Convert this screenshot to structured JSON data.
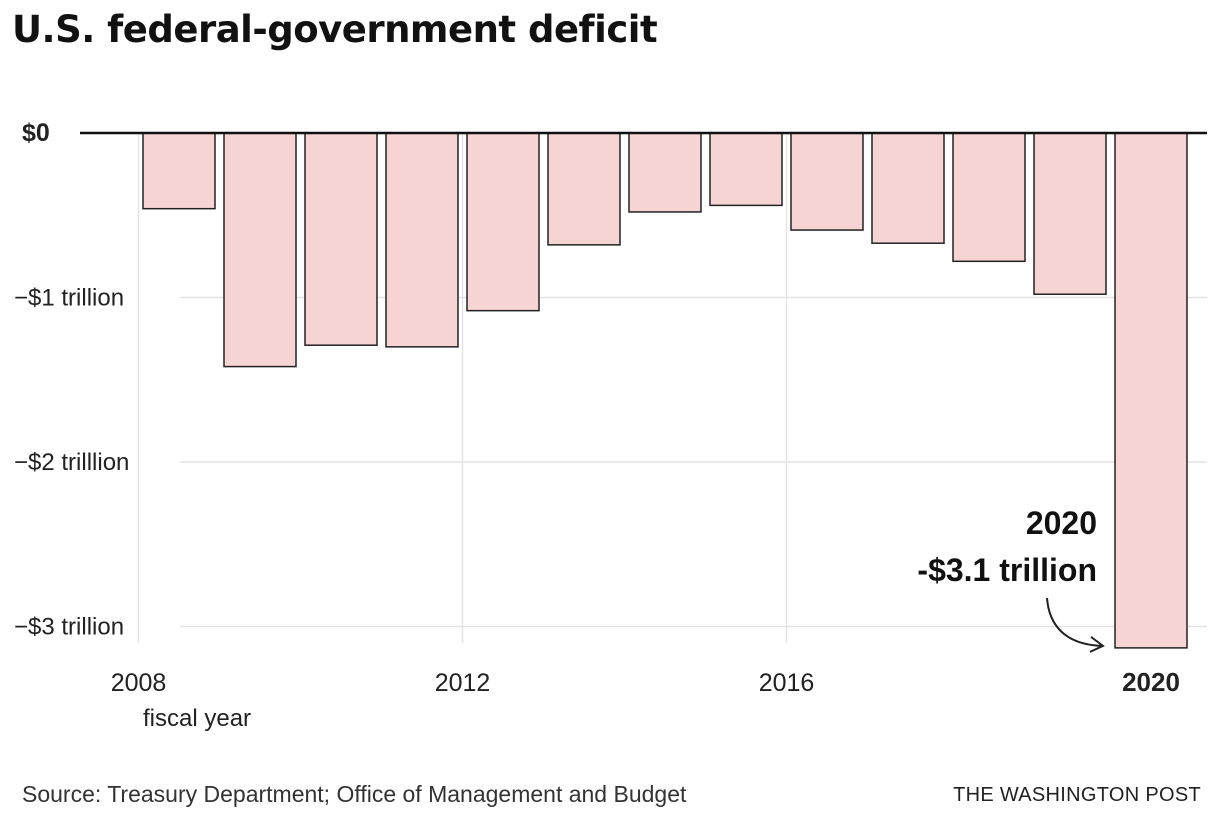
{
  "chart_data": {
    "type": "bar",
    "title": "U.S. federal-government deficit",
    "categories": [
      "2008",
      "2009",
      "2010",
      "2011",
      "2012",
      "2013",
      "2014",
      "2015",
      "2016",
      "2017",
      "2018",
      "2019",
      "2020"
    ],
    "values": [
      -0.46,
      -1.42,
      -1.29,
      -1.3,
      -1.08,
      -0.68,
      -0.48,
      -0.44,
      -0.59,
      -0.67,
      -0.78,
      -0.98,
      -3.13
    ],
    "ylim": [
      -3.1,
      0
    ],
    "y_ticks": [
      {
        "value": 0,
        "label": "$0"
      },
      {
        "value": -1,
        "label": "−$1 trillion"
      },
      {
        "value": -2,
        "label": "−$2 trilllion"
      },
      {
        "value": -3,
        "label": "−$3 trillion"
      }
    ],
    "x_ticks": [
      {
        "category": "2008",
        "label": "2008"
      },
      {
        "category": "2012",
        "label": "2012"
      },
      {
        "category": "2016",
        "label": "2016"
      },
      {
        "category": "2020",
        "label": "2020"
      }
    ],
    "xlabel": "fiscal year",
    "ylabel": "",
    "grid": true,
    "colors": {
      "bar_fill": "#f7d4d4",
      "bar_stroke": "#222222",
      "grid": "#e4e4e4",
      "zero_line": "#111111"
    },
    "annotation": {
      "category": "2020",
      "line1": "2020",
      "line2": "-$3.1 trillion"
    }
  },
  "source": "Source: Treasury Department; Office of Management and Budget",
  "credit": "THE WASHINGTON POST"
}
